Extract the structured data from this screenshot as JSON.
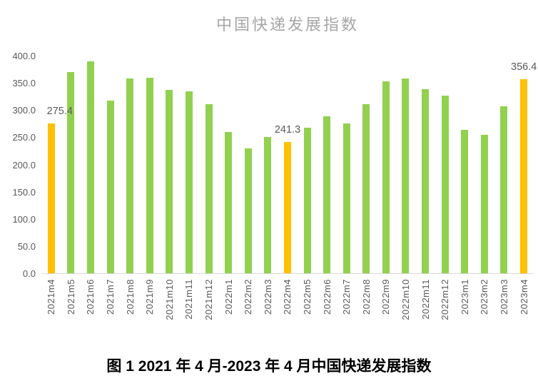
{
  "chart": {
    "caption": "图 1  2021 年 4 月-2023 年 4 月中国快递发展指数",
    "colors": {
      "bar_default": "#92D050",
      "bar_highlight": "#FFC000",
      "axis_text": "#595959",
      "title_text": "#A6A6A6",
      "baseline": "#D9D9D9",
      "data_label_text": "#595959"
    }
  },
  "chart_data": {
    "type": "bar",
    "title": "中国快递发展指数",
    "categories": [
      "2021m4",
      "2021m5",
      "2021m6",
      "2021m7",
      "2021m8",
      "2021m9",
      "2021m10",
      "2021m11",
      "2021m12",
      "2022m1",
      "2022m2",
      "2022m3",
      "2022m4",
      "2022m5",
      "2022m6",
      "2022m7",
      "2022m8",
      "2022m9",
      "2022m10",
      "2022m11",
      "2022m12",
      "2023m1",
      "2023m2",
      "2023m3",
      "2023m4"
    ],
    "values": [
      275.4,
      370,
      390,
      317,
      358,
      360,
      337,
      334,
      311,
      260,
      230,
      250,
      241.3,
      268,
      289,
      275,
      311,
      353,
      358,
      339,
      327,
      264,
      254,
      307,
      356.4
    ],
    "highlighted_indices": [
      0,
      12,
      24
    ],
    "data_labels": [
      {
        "index": 0,
        "text": "275.4"
      },
      {
        "index": 12,
        "text": "241.3"
      },
      {
        "index": 24,
        "text": "356.4"
      }
    ],
    "xlabel": "",
    "ylabel": "",
    "ylim": [
      0,
      400
    ],
    "y_ticks": [
      "400.0",
      "350.0",
      "300.0",
      "250.0",
      "200.0",
      "150.0",
      "100.0",
      "50.0",
      "0.0"
    ],
    "grid": false,
    "legend": false
  }
}
